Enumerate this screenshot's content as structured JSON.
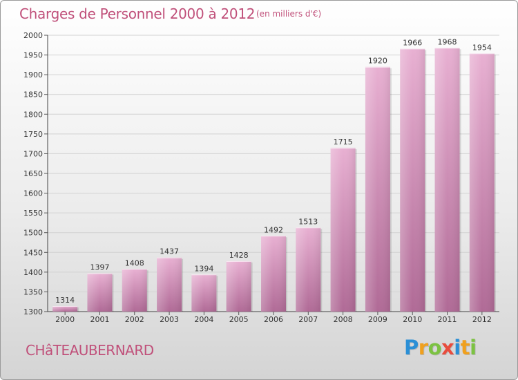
{
  "title": "Charges de Personnel 2000 à 2012",
  "subtitle": "(en milliers d'€)",
  "commune": "CHâTEAUBERNARD",
  "logo": {
    "text": "Proxiti",
    "letters": [
      "P",
      "r",
      "o",
      "x",
      "i",
      "t",
      "i"
    ],
    "colors": [
      "#2a8fd6",
      "#f0a01e",
      "#7cc242",
      "#e84c3d",
      "#2a8fd6",
      "#f0a01e",
      "#7cc242"
    ]
  },
  "colors": {
    "accent": "#c0507a",
    "bar_top": "#e8b0d2",
    "bar_bottom": "#b06a96"
  },
  "chart_data": {
    "type": "bar",
    "categories": [
      "2000",
      "2001",
      "2002",
      "2003",
      "2004",
      "2005",
      "2006",
      "2007",
      "2008",
      "2009",
      "2010",
      "2011",
      "2012"
    ],
    "values": [
      1314,
      1397,
      1408,
      1437,
      1394,
      1428,
      1492,
      1513,
      1715,
      1920,
      1966,
      1968,
      1954
    ],
    "ylim": [
      1300,
      2000
    ],
    "yticks": [
      1300,
      1350,
      1400,
      1450,
      1500,
      1550,
      1600,
      1650,
      1700,
      1750,
      1800,
      1850,
      1900,
      1950,
      2000
    ],
    "grid": true,
    "data_labels": true
  }
}
